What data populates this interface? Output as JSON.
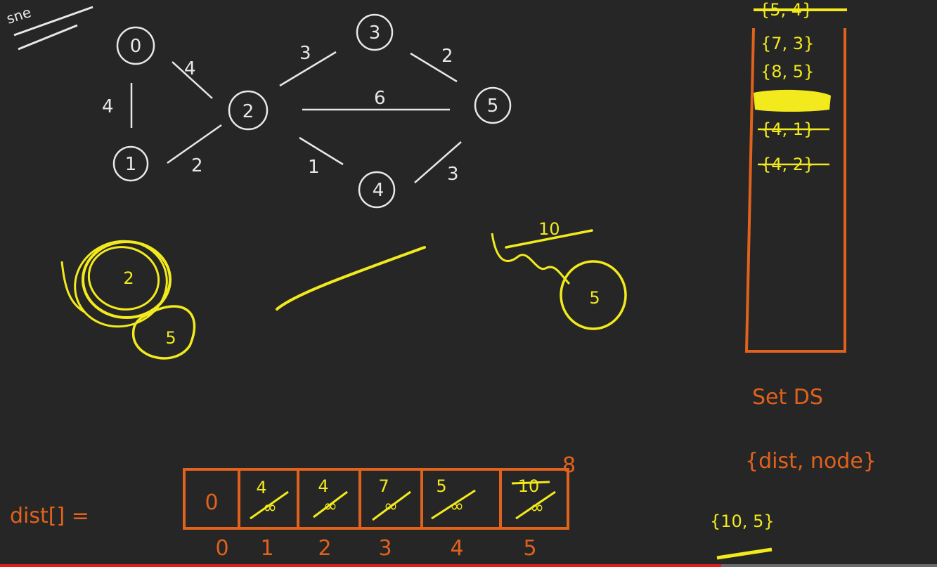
{
  "corner_scribble": "sne",
  "graph": {
    "nodes": [
      {
        "id": "0",
        "label": "0"
      },
      {
        "id": "1",
        "label": "1"
      },
      {
        "id": "2",
        "label": "2"
      },
      {
        "id": "3",
        "label": "3"
      },
      {
        "id": "4",
        "label": "4"
      },
      {
        "id": "5",
        "label": "5"
      }
    ],
    "edges": [
      {
        "from": "0",
        "to": "1",
        "weight": "4"
      },
      {
        "from": "0",
        "to": "2",
        "weight": "4"
      },
      {
        "from": "1",
        "to": "2",
        "weight": "2"
      },
      {
        "from": "2",
        "to": "3",
        "weight": "3"
      },
      {
        "from": "2",
        "to": "5",
        "weight": "6"
      },
      {
        "from": "2",
        "to": "4",
        "weight": "1"
      },
      {
        "from": "3",
        "to": "5",
        "weight": "2"
      },
      {
        "from": "4",
        "to": "5",
        "weight": "3"
      }
    ]
  },
  "yellow_notes": {
    "left_circle_inner": "2",
    "left_circle_small": "5",
    "right_top_number": "10",
    "right_circle": "5"
  },
  "set_stack": {
    "entries": [
      {
        "text": "{5, 4}",
        "struck": true
      },
      {
        "text": "{7, 3}",
        "struck": false
      },
      {
        "text": "{8, 5}",
        "struck": false
      },
      {
        "text": "",
        "struck": true
      },
      {
        "text": "{4, 1}",
        "struck": true
      },
      {
        "text": "{4, 2}",
        "struck": true
      }
    ],
    "caption": "Set DS",
    "pair_format": "{dist, node}",
    "next_pair": "{10, 5}"
  },
  "dist_array": {
    "label": "dist[] =",
    "cells": [
      {
        "index": "0",
        "value": "0",
        "old": ""
      },
      {
        "index": "1",
        "value": "4",
        "old": "∞"
      },
      {
        "index": "2",
        "value": "4",
        "old": "∞"
      },
      {
        "index": "3",
        "value": "7",
        "old": "∞"
      },
      {
        "index": "4",
        "value": "5",
        "old": "∞"
      },
      {
        "index": "5",
        "value": "10",
        "old": "∞"
      }
    ],
    "above_last": "8"
  },
  "video": {
    "progress": 0.77,
    "played_color": "#e01b1b"
  },
  "colors": {
    "white": "#e8e8e8",
    "yellow": "#f2ea1c",
    "orange": "#e0621c",
    "board": "#262626"
  }
}
